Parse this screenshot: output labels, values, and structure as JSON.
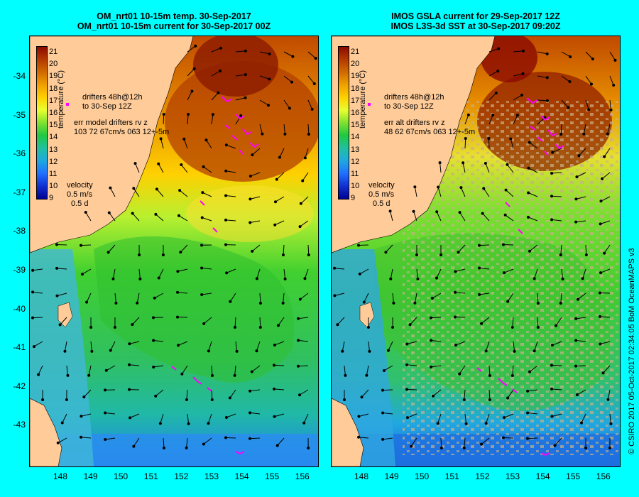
{
  "titles": {
    "left_line1": "OM_nrt01 10-15m temp. 30-Sep-2017",
    "left_line2": "OM_nrt01 10-15m current for 30-Sep-2017 00Z",
    "right_line1": "IMOS GSLA current for 29-Sep-2017 12Z",
    "right_line2": "IMOS L3S-3d SST at 30-Sep-2017 09:20Z"
  },
  "axes": {
    "lat_ticks": [
      "-34",
      "-35",
      "-36",
      "-37",
      "-38",
      "-39",
      "-40",
      "-41",
      "-42",
      "-43"
    ],
    "lon_ticks": [
      "148",
      "149",
      "150",
      "151",
      "152",
      "153",
      "154",
      "155",
      "156"
    ]
  },
  "colorbar": {
    "ticks": [
      "21",
      "20",
      "19",
      "18",
      "17",
      "16",
      "15",
      "14",
      "13",
      "12",
      "11",
      "10",
      "9"
    ],
    "title": "temperature (°C)",
    "colors": [
      "#8b0a00",
      "#b33a00",
      "#d06a00",
      "#f0a000",
      "#ffd000",
      "#e8ff30",
      "#80e030",
      "#20c840",
      "#20c0a0",
      "#20a8e0",
      "#2070ff",
      "#1030d0",
      "#000090"
    ]
  },
  "left_panel": {
    "drifters_line1": "drifters 48h@12h",
    "drifters_line2": "to 30-Sep 12Z",
    "err_line1": "err model drifters rv z",
    "err_line2": "103 72 67cm/s 063 12+-5m",
    "velocity_label": "velocity",
    "velocity_value": "0.5 m/s",
    "velocity_time": "0.5 d"
  },
  "right_panel": {
    "drifters_line1": "drifters 48h@12h",
    "drifters_line2": "to 30-Sep 12Z",
    "err_line1": "err alt drifters rv z",
    "err_line2": "48 62 67cm/s 063 12+-5m",
    "velocity_label": "velocity",
    "velocity_value": "0.5 m/s",
    "velocity_time": "0.5 d"
  },
  "credit": "© CSIRO 2017   05-Oct-2017 02:34:05 BoM OceanMAPS v3",
  "colors": {
    "background": "#00ffff",
    "land": "#ffcc99",
    "drifter": "#ff00ff",
    "missing_data": "#c8b08a"
  }
}
